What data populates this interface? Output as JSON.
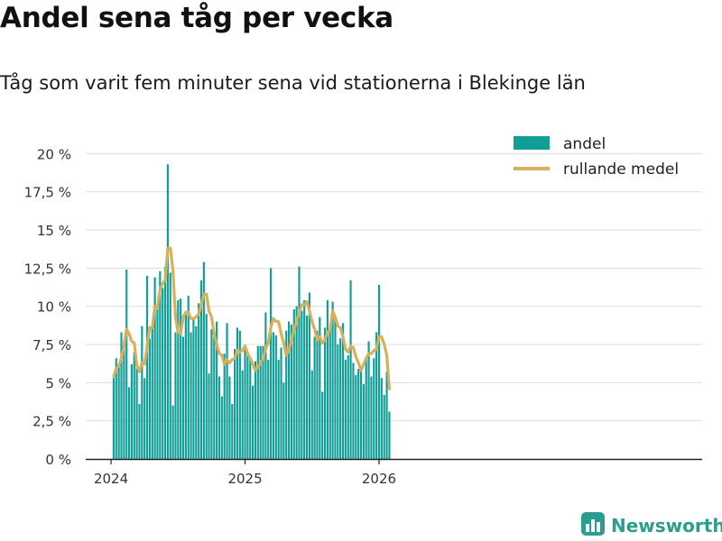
{
  "title": "Andel sena tåg per vecka",
  "subtitle": "Tåg som varit fem minuter sena vid stationerna i Blekinge län",
  "brand": {
    "name": "Newsworthy",
    "icon": "bar-chart-icon"
  },
  "colors": {
    "bar": "#109e96",
    "line": "#d6b05d",
    "grid": "#dddddd",
    "axis": "#222222",
    "text": "#333333",
    "brand": "#2a9d8f"
  },
  "chart_data": {
    "type": "bar",
    "title": "Andel sena tåg per vecka",
    "xlabel": "",
    "ylabel": "",
    "ylim": [
      0,
      21.5
    ],
    "yticks": [
      0,
      2.5,
      5,
      7.5,
      10,
      12.5,
      15,
      17.5,
      20
    ],
    "ytick_labels": [
      "0 %",
      "2,5 %",
      "5 %",
      "7,5 %",
      "10 %",
      "12,5 %",
      "15 %",
      "17,5 %",
      "20 %"
    ],
    "xticks": [
      {
        "label": "2024",
        "index": -1
      },
      {
        "label": "2025",
        "index": 51
      },
      {
        "label": "2026",
        "index": 103
      }
    ],
    "x_start": "2024 v.5",
    "grid": true,
    "legend_position": "top-right",
    "series": [
      {
        "name": "andel",
        "kind": "bar",
        "values": [
          5.3,
          6.6,
          6.1,
          8.3,
          7.7,
          12.4,
          4.7,
          6.2,
          7.0,
          6.2,
          3.6,
          8.7,
          5.3,
          12.0,
          7.9,
          8.6,
          11.9,
          9.8,
          12.3,
          11.2,
          12.6,
          19.3,
          12.2,
          3.5,
          8.3,
          10.4,
          10.5,
          8.0,
          9.7,
          10.7,
          8.3,
          9.2,
          8.7,
          10.2,
          11.7,
          12.9,
          9.5,
          5.6,
          8.5,
          8.0,
          9.0,
          5.4,
          4.1,
          6.9,
          8.9,
          5.4,
          3.6,
          7.2,
          8.6,
          8.4,
          5.8,
          7.4,
          6.8,
          6.5,
          4.8,
          6.4,
          7.4,
          7.4,
          7.4,
          9.6,
          6.5,
          12.5,
          8.3,
          8.1,
          6.5,
          7.3,
          5.0,
          8.4,
          9.0,
          8.8,
          9.8,
          10.0,
          12.6,
          9.7,
          10.4,
          9.4,
          10.9,
          5.8,
          8.0,
          8.4,
          9.3,
          4.4,
          8.6,
          10.4,
          8.6,
          10.3,
          9.3,
          7.5,
          7.9,
          8.9,
          6.5,
          6.8,
          11.7,
          6.3,
          5.5,
          5.9,
          6.1,
          4.9,
          6.5,
          7.7,
          5.4,
          6.6,
          8.3,
          11.4,
          5.3,
          4.2,
          5.7,
          3.1
        ]
      },
      {
        "name": "rullande medel",
        "kind": "line",
        "values": [
          5.4,
          5.9,
          6.1,
          6.6,
          7.4,
          8.5,
          8.2,
          7.7,
          7.6,
          6.1,
          5.7,
          6.3,
          6.2,
          7.4,
          8.6,
          8.6,
          10.0,
          9.9,
          11.1,
          11.5,
          11.7,
          13.8,
          13.8,
          12.4,
          9.3,
          8.3,
          8.2,
          9.3,
          9.6,
          9.6,
          9.2,
          9.2,
          9.3,
          9.5,
          10.1,
          10.8,
          10.8,
          9.7,
          9.3,
          8.2,
          7.5,
          6.9,
          6.8,
          6.2,
          6.5,
          6.3,
          6.5,
          6.6,
          7.1,
          7.0,
          7.1,
          7.4,
          6.9,
          6.6,
          6.2,
          5.8,
          6.0,
          6.3,
          6.6,
          7.2,
          7.6,
          8.6,
          9.2,
          9.0,
          9.0,
          8.2,
          7.6,
          6.8,
          7.1,
          7.8,
          8.5,
          9.0,
          9.6,
          10.1,
          10.1,
          10.3,
          9.7,
          9.0,
          8.5,
          7.8,
          8.0,
          7.6,
          7.8,
          8.3,
          8.4,
          9.7,
          9.3,
          8.7,
          8.6,
          8.0,
          7.2,
          7.0,
          7.4,
          7.3,
          6.7,
          6.3,
          5.8,
          6.2,
          6.6,
          6.9,
          6.9,
          7.1,
          7.2,
          8.0,
          8.0,
          7.5,
          6.8,
          4.6
        ]
      }
    ]
  }
}
